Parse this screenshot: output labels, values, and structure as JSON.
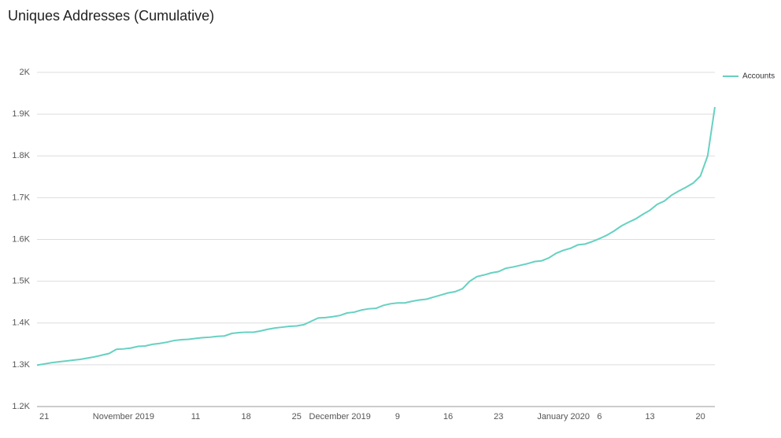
{
  "chart_data": {
    "type": "line",
    "title": "Uniques Addresses (Cumulative)",
    "categories": [
      null,
      "21",
      null,
      null,
      null,
      null,
      null,
      null,
      null,
      null,
      null,
      null,
      "November 2019",
      null,
      null,
      null,
      null,
      null,
      null,
      null,
      null,
      null,
      "11",
      null,
      null,
      null,
      null,
      null,
      null,
      "18",
      null,
      null,
      null,
      null,
      null,
      null,
      "25",
      null,
      null,
      null,
      null,
      null,
      "December 2019",
      null,
      null,
      null,
      null,
      null,
      null,
      null,
      "9",
      null,
      null,
      null,
      null,
      null,
      null,
      "16",
      null,
      null,
      null,
      null,
      null,
      null,
      "23",
      null,
      null,
      null,
      null,
      null,
      null,
      null,
      null,
      "January 2020",
      null,
      null,
      null,
      null,
      "6",
      null,
      null,
      null,
      null,
      null,
      null,
      "13",
      null,
      null,
      null,
      null,
      null,
      null,
      "20",
      null,
      null
    ],
    "series": [
      {
        "name": "Accounts",
        "color": "#66d1c1",
        "values": [
          1299,
          1302,
          1305,
          1307,
          1309,
          1311,
          1313,
          1316,
          1319,
          1323,
          1327,
          1337,
          1338,
          1340,
          1344,
          1345,
          1349,
          1351,
          1354,
          1358,
          1360,
          1361,
          1363,
          1365,
          1366,
          1368,
          1369,
          1375,
          1377,
          1378,
          1378,
          1381,
          1385,
          1388,
          1390,
          1392,
          1393,
          1396,
          1404,
          1412,
          1413,
          1415,
          1418,
          1424,
          1426,
          1431,
          1434,
          1435,
          1442,
          1446,
          1448,
          1448,
          1452,
          1455,
          1457,
          1462,
          1467,
          1472,
          1475,
          1482,
          1500,
          1511,
          1515,
          1520,
          1523,
          1531,
          1534,
          1538,
          1542,
          1547,
          1549,
          1556,
          1567,
          1574,
          1579,
          1587,
          1589,
          1595,
          1602,
          1610,
          1620,
          1632,
          1641,
          1649,
          1660,
          1670,
          1684,
          1692,
          1706,
          1716,
          1725,
          1735,
          1752,
          1800,
          1917
        ]
      }
    ],
    "ylim": [
      1200,
      2000
    ],
    "yticks": [
      {
        "value": 1200,
        "label": "1.2K"
      },
      {
        "value": 1300,
        "label": "1.3K"
      },
      {
        "value": 1400,
        "label": "1.4K"
      },
      {
        "value": 1500,
        "label": "1.5K"
      },
      {
        "value": 1600,
        "label": "1.6K"
      },
      {
        "value": 1700,
        "label": "1.7K"
      },
      {
        "value": 1800,
        "label": "1.8K"
      },
      {
        "value": 1900,
        "label": "1.9K"
      },
      {
        "value": 2000,
        "label": "2K"
      }
    ],
    "grid": true,
    "legend": "right"
  }
}
